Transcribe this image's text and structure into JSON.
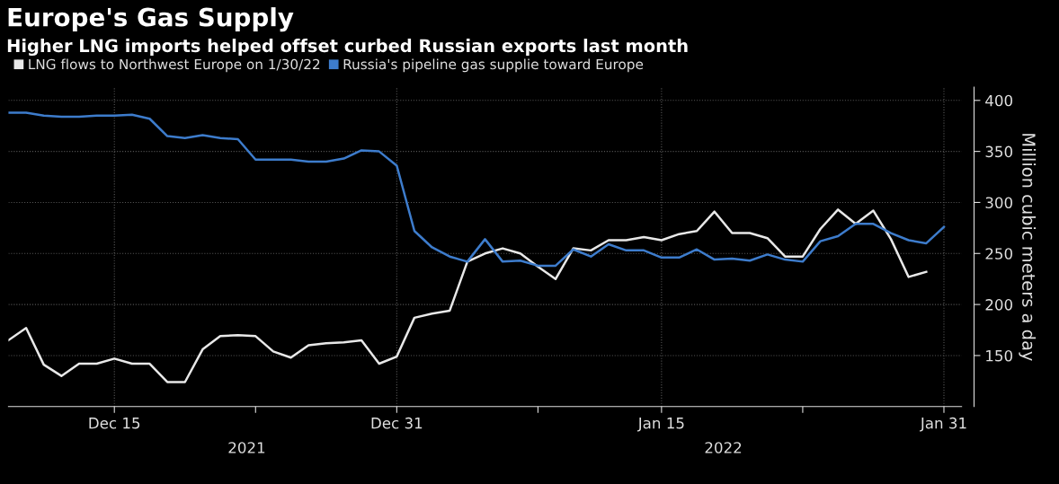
{
  "chart_data": {
    "type": "line",
    "title": "Europe's Gas Supply",
    "subtitle": "Higher LNG imports helped offset curbed Russian exports last month",
    "ylabel": "Million cubic meters a day",
    "x": [
      "2021-12-09",
      "2021-12-10",
      "2021-12-11",
      "2021-12-12",
      "2021-12-13",
      "2021-12-14",
      "2021-12-15",
      "2021-12-16",
      "2021-12-17",
      "2021-12-18",
      "2021-12-19",
      "2021-12-20",
      "2021-12-21",
      "2021-12-22",
      "2021-12-23",
      "2021-12-24",
      "2021-12-25",
      "2021-12-26",
      "2021-12-27",
      "2021-12-28",
      "2021-12-29",
      "2021-12-30",
      "2021-12-31",
      "2022-01-01",
      "2022-01-02",
      "2022-01-03",
      "2022-01-04",
      "2022-01-05",
      "2022-01-06",
      "2022-01-07",
      "2022-01-08",
      "2022-01-09",
      "2022-01-10",
      "2022-01-11",
      "2022-01-12",
      "2022-01-13",
      "2022-01-14",
      "2022-01-15",
      "2022-01-16",
      "2022-01-17",
      "2022-01-18",
      "2022-01-19",
      "2022-01-20",
      "2022-01-21",
      "2022-01-22",
      "2022-01-23",
      "2022-01-24",
      "2022-01-25",
      "2022-01-26",
      "2022-01-27",
      "2022-01-28",
      "2022-01-29",
      "2022-01-30",
      "2022-01-31"
    ],
    "series": [
      {
        "name": "LNG flows to Northwest Europe on 1/30/22",
        "color": "#e8e8e8",
        "values": [
          165,
          177,
          141,
          130,
          142,
          142,
          147,
          142,
          142,
          124,
          124,
          156,
          169,
          170,
          169,
          154,
          148,
          160,
          162,
          163,
          165,
          142,
          149,
          187,
          191,
          194,
          242,
          250,
          255,
          250,
          237,
          225,
          255,
          253,
          263,
          263,
          266,
          263,
          269,
          272,
          291,
          270,
          270,
          265,
          247,
          247,
          274,
          293,
          279,
          292,
          264,
          227,
          232,
          null
        ]
      },
      {
        "name": "Russia's pipeline gas supplie toward Europe",
        "color": "#3d7ccc",
        "values": [
          388,
          388,
          385,
          384,
          384,
          385,
          385,
          386,
          382,
          365,
          363,
          366,
          363,
          362,
          342,
          342,
          342,
          340,
          340,
          343,
          351,
          350,
          336,
          272,
          256,
          247,
          242,
          264,
          242,
          243,
          238,
          238,
          254,
          247,
          259,
          253,
          253,
          246,
          246,
          254,
          244,
          245,
          243,
          249,
          244,
          242,
          262,
          267,
          279,
          279,
          270,
          263,
          260,
          276
        ]
      }
    ],
    "xlim": [
      "2021-12-09",
      "2022-02-01"
    ],
    "xticks": [
      {
        "value": "2021-12-15",
        "label": "Dec 15"
      },
      {
        "value": "2021-12-23",
        "label": null
      },
      {
        "value": "2021-12-31",
        "label": "Dec 31"
      },
      {
        "value": "2022-01-08",
        "label": null
      },
      {
        "value": "2022-01-15",
        "label": "Jan 15"
      },
      {
        "value": "2022-01-23",
        "label": null
      },
      {
        "value": "2022-01-31",
        "label": "Jan 31"
      }
    ],
    "ylim": [
      100,
      413
    ],
    "yticks": [
      150,
      200,
      250,
      300,
      350,
      400
    ],
    "annotations": [
      "2021",
      "2022"
    ],
    "grid": true,
    "legend": "top left",
    "line_style": "solid",
    "marker": "none"
  }
}
